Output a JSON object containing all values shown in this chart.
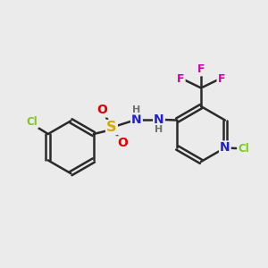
{
  "background_color": "#ebebeb",
  "bond_color": "#2a2a2a",
  "bond_width": 1.8,
  "atom_colors": {
    "Cl": "#7ec820",
    "S": "#d4aa00",
    "O": "#e00000",
    "N": "#2020d0",
    "F": "#cc00aa",
    "C": "#2a2a2a",
    "H": "#707070"
  },
  "figsize": [
    3.0,
    3.0
  ],
  "dpi": 100
}
